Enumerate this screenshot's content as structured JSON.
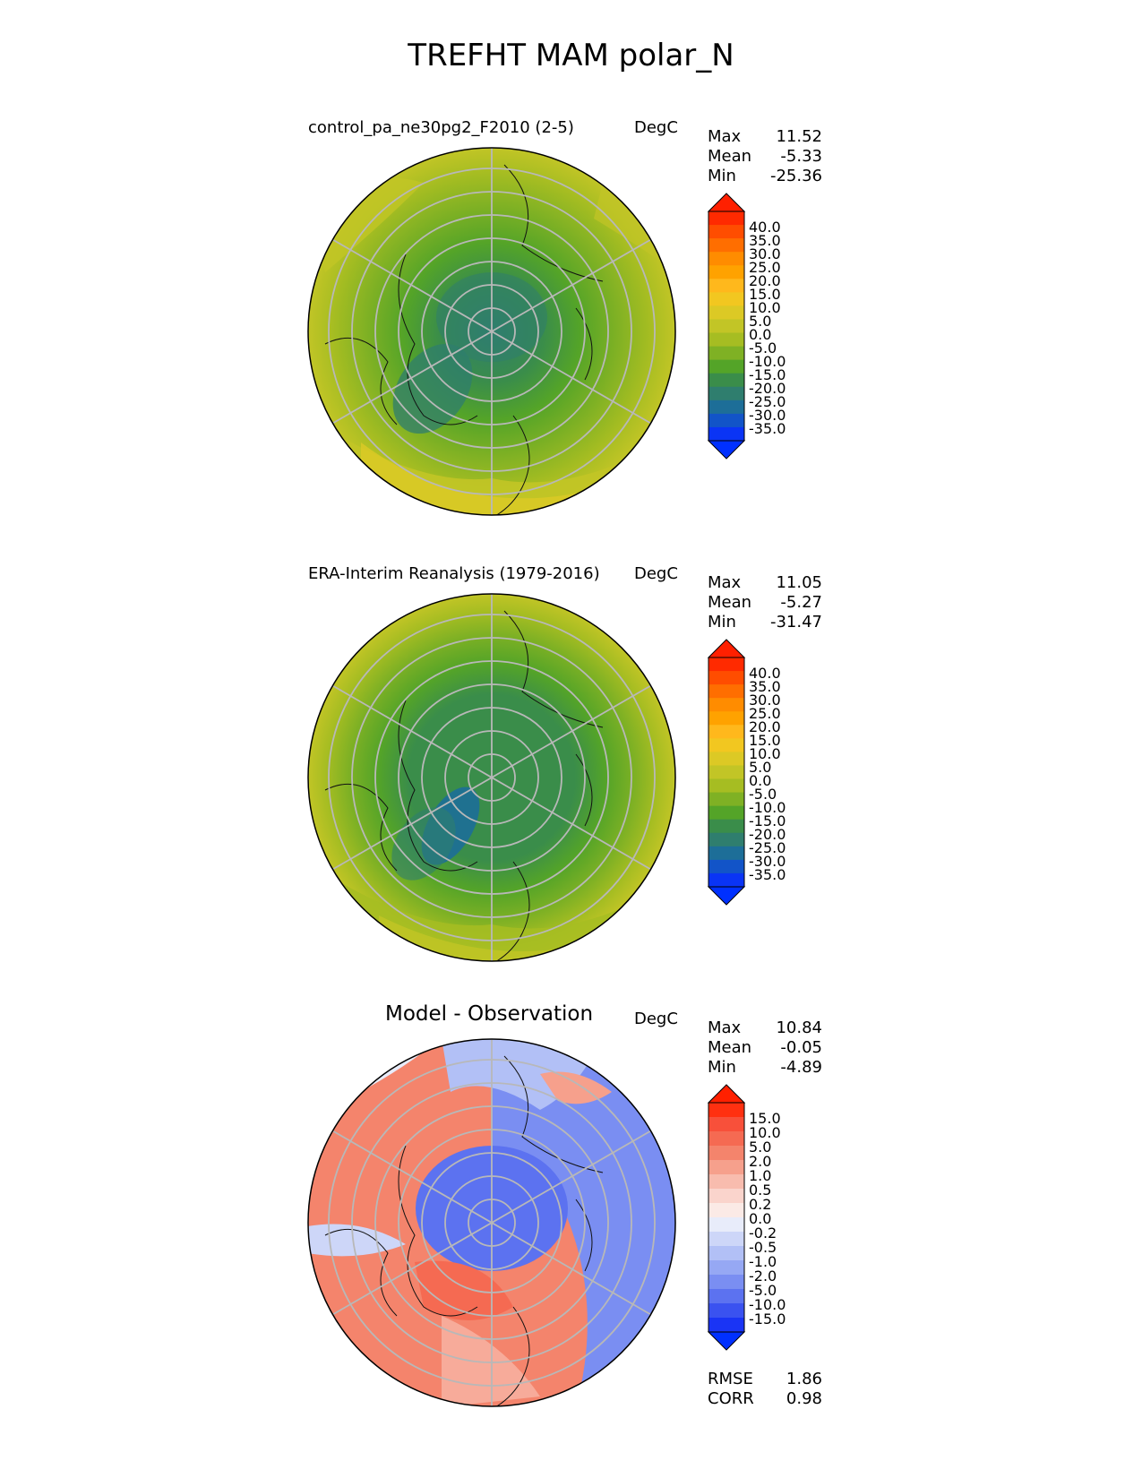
{
  "figure": {
    "title": "TREFHT MAM polar_N"
  },
  "panels": [
    {
      "title": "control_pa_ne30pg2_F2010 (2-5)",
      "units": "DegC",
      "stats": [
        {
          "label": "Max",
          "value": "11.52"
        },
        {
          "label": "Mean",
          "value": "-5.33"
        },
        {
          "label": "Min",
          "value": "-25.36"
        }
      ],
      "colorbar_ticks": [
        "40.0",
        "35.0",
        "30.0",
        "25.0",
        "20.0",
        "15.0",
        "10.0",
        "5.0",
        "0.0",
        "-5.0",
        "-10.0",
        "-15.0",
        "-20.0",
        "-25.0",
        "-30.0",
        "-35.0"
      ],
      "colorbar_colors": [
        "#ff2a00",
        "#ff4d00",
        "#ff6e00",
        "#ff8c00",
        "#ffa200",
        "#ffb81c",
        "#f2c720",
        "#dcc925",
        "#c2c526",
        "#a6bd22",
        "#7fb124",
        "#54a428",
        "#3a8d4a",
        "#2f7e6e",
        "#1d6e98",
        "#1254c8",
        "#0a34f5"
      ],
      "overflow_colors": {
        "top": "#ff2000",
        "bottom": "#0030ff"
      }
    },
    {
      "title": "ERA-Interim Reanalysis (1979-2016)",
      "units": "DegC",
      "stats": [
        {
          "label": "Max",
          "value": "11.05"
        },
        {
          "label": "Mean",
          "value": "-5.27"
        },
        {
          "label": "Min",
          "value": "-31.47"
        }
      ],
      "colorbar_ticks": [
        "40.0",
        "35.0",
        "30.0",
        "25.0",
        "20.0",
        "15.0",
        "10.0",
        "5.0",
        "0.0",
        "-5.0",
        "-10.0",
        "-15.0",
        "-20.0",
        "-25.0",
        "-30.0",
        "-35.0"
      ],
      "colorbar_colors": [
        "#ff2a00",
        "#ff4d00",
        "#ff6e00",
        "#ff8c00",
        "#ffa200",
        "#ffb81c",
        "#f2c720",
        "#dcc925",
        "#c2c526",
        "#a6bd22",
        "#7fb124",
        "#54a428",
        "#3a8d4a",
        "#2f7e6e",
        "#1d6e98",
        "#1254c8",
        "#0a34f5"
      ],
      "overflow_colors": {
        "top": "#ff2000",
        "bottom": "#0030ff"
      }
    },
    {
      "title": "Model - Observation",
      "units": "DegC",
      "stats": [
        {
          "label": "Max",
          "value": "10.84"
        },
        {
          "label": "Mean",
          "value": "-0.05"
        },
        {
          "label": "Min",
          "value": "-4.89"
        }
      ],
      "colorbar_ticks": [
        "15.0",
        "10.0",
        "5.0",
        "2.0",
        "1.0",
        "0.5",
        "0.2",
        "0.0",
        "-0.2",
        "-0.5",
        "-1.0",
        "-2.0",
        "-5.0",
        "-10.0",
        "-15.0"
      ],
      "colorbar_colors": [
        "#ff3010",
        "#f8503a",
        "#f56a52",
        "#f4846c",
        "#f6a08c",
        "#f8bcae",
        "#fad4cc",
        "#fbeae6",
        "#e8ecfa",
        "#cdd6f8",
        "#b2c0f6",
        "#96a8f4",
        "#7a8ef2",
        "#5c72f0",
        "#3a52f0",
        "#1a34f5"
      ],
      "overflow_colors": {
        "top": "#ff2000",
        "bottom": "#0030ff"
      },
      "metrics": [
        {
          "label": "RMSE",
          "value": "1.86"
        },
        {
          "label": "CORR",
          "value": "0.98"
        }
      ]
    }
  ]
}
